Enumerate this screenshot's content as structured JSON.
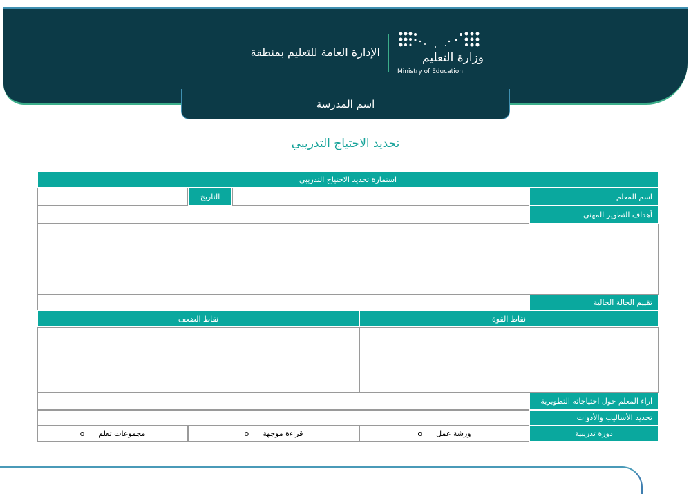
{
  "header": {
    "region": "الإدارة العامة للتعليم بمنطقة",
    "logo_ar": "وزارة التعليم",
    "logo_en": "Ministry of Education",
    "school": "اسم المدرسة"
  },
  "title": "تحديد الاحتياج التدريبي",
  "form": {
    "heading": "استمارة تحديد الاحتياج التدريبي",
    "teacher": "اسم المعلم",
    "date": "التاريخ",
    "goals": "أهداف التطوير المهني",
    "assessment": "تقييم الحالة الحالية",
    "strengths": "نقاط القوة",
    "weaknesses": "نقاط الضعف",
    "opinions": "آراء المعلم حول احتياجاته التطويرية",
    "methods": "تحديد الأساليب والأدوات",
    "course": "دورة تدريبية",
    "options": [
      "ورشة عمل",
      "قراءة موجهة",
      "مجموعات تعلم"
    ],
    "bullet": "ο"
  },
  "colors": {
    "dark": "#0c3a47",
    "teal": "#0aa89e"
  }
}
